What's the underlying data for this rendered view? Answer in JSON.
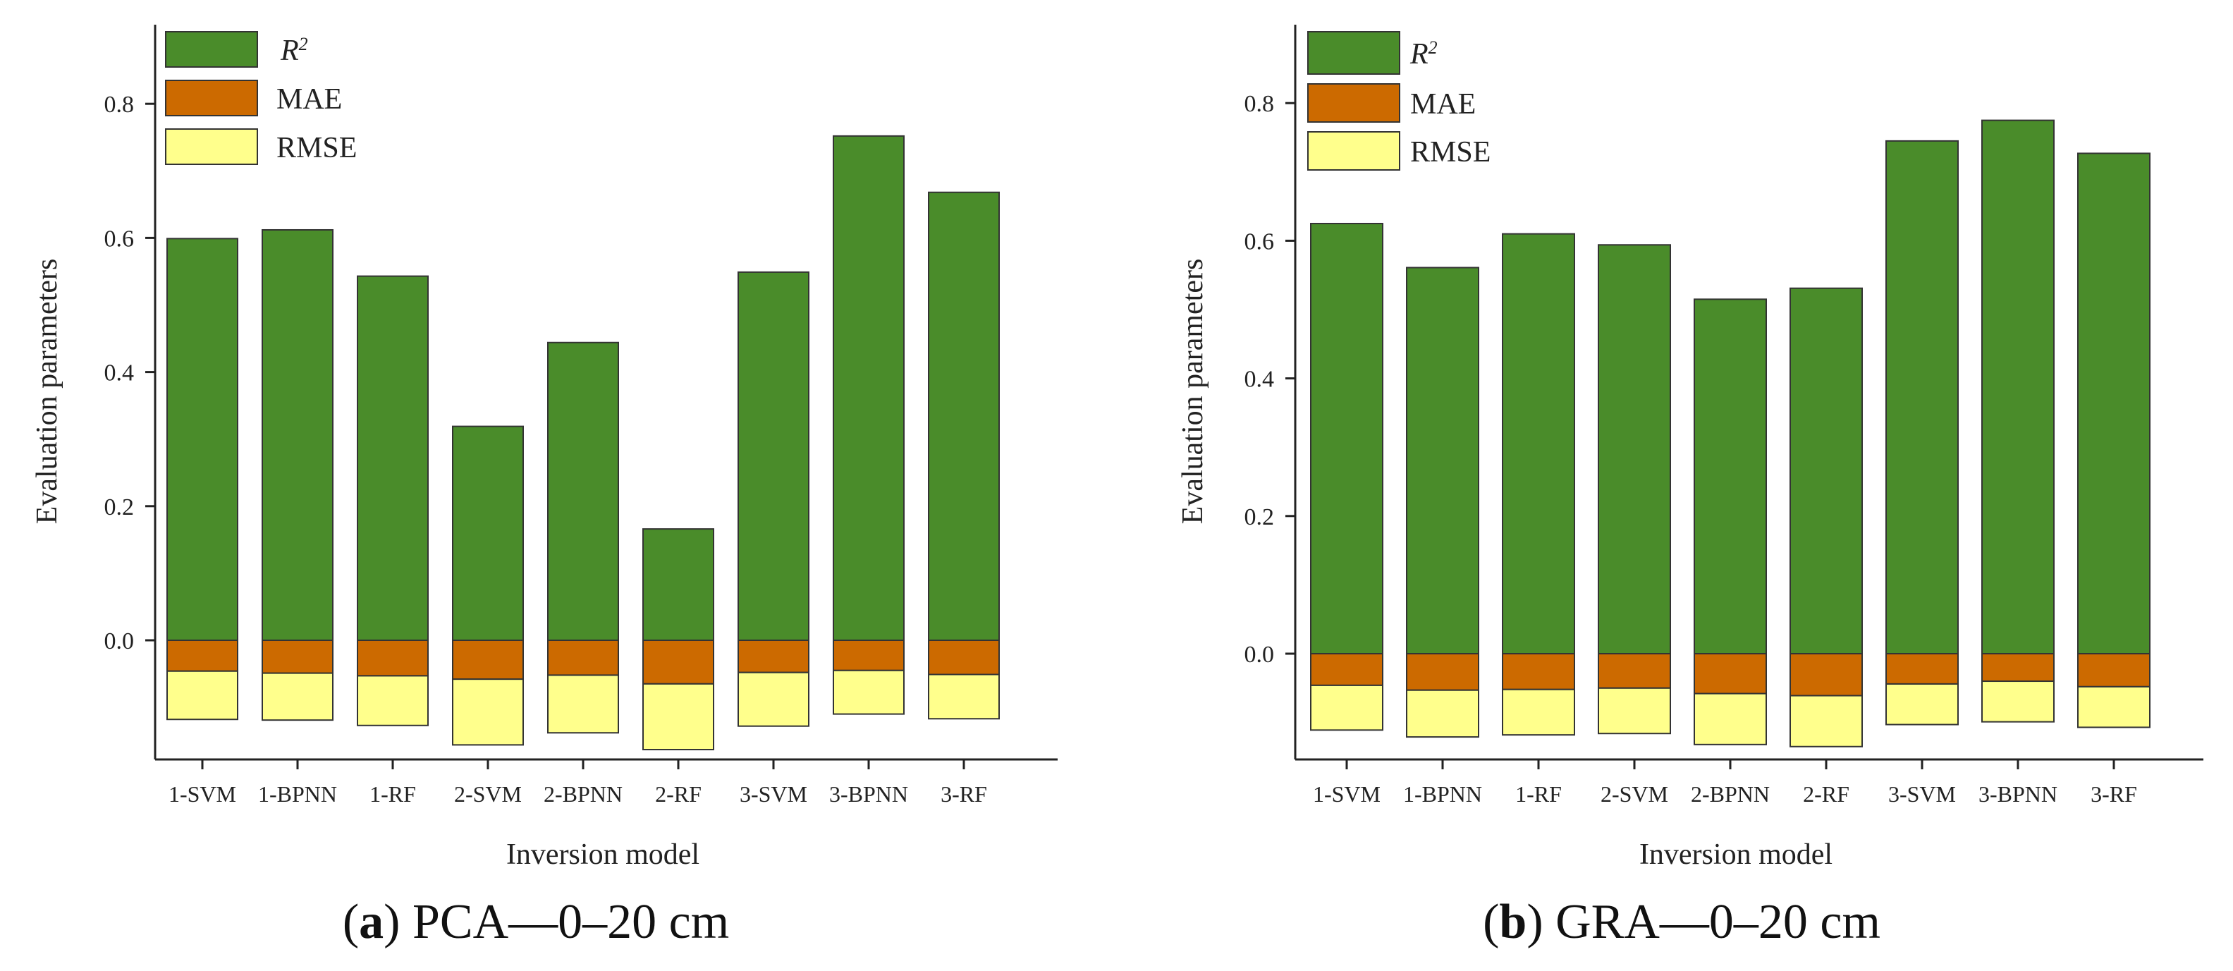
{
  "figure_captions": [
    {
      "label": "a",
      "text": " PCA—0–20 cm"
    },
    {
      "label": "b",
      "text": " GRA—0–20 cm"
    }
  ],
  "colors": {
    "r2": "#4a8c2a",
    "mae": "#cc6a00",
    "rmse": "#ffff8c",
    "stroke": "#333333"
  },
  "chart_data": [
    {
      "type": "bar",
      "stacked": true,
      "title": "",
      "xlabel": "Inversion model",
      "ylabel": "Evaluation  parameters",
      "ylim": [
        -0.18,
        0.9
      ],
      "yticks": [
        0.0,
        0.2,
        0.4,
        0.6,
        0.8
      ],
      "ytick_labels": [
        "0.0",
        "0.2",
        "0.4",
        "0.6",
        "0.8"
      ],
      "legend": [
        {
          "name": "R",
          "sup": "2"
        },
        {
          "name": "MAE",
          "sup": ""
        },
        {
          "name": "RMSE",
          "sup": ""
        }
      ],
      "legend_position": "top-left",
      "categories": [
        "1-SVM",
        "1-BPNN",
        "1-RF",
        "2-SVM",
        "2-BPNN",
        "2-RF",
        "3-SVM",
        "3-BPNN",
        "3-RF"
      ],
      "series": [
        {
          "name": "R2",
          "values": [
            0.599,
            0.612,
            0.543,
            0.319,
            0.444,
            0.166,
            0.549,
            0.752,
            0.668
          ]
        },
        {
          "name": "MAE",
          "values": [
            -0.046,
            -0.049,
            -0.053,
            -0.058,
            -0.052,
            -0.065,
            -0.048,
            -0.045,
            -0.051
          ]
        },
        {
          "name": "RMSE",
          "values": [
            -0.072,
            -0.07,
            -0.074,
            -0.098,
            -0.086,
            -0.098,
            -0.08,
            -0.065,
            -0.066
          ]
        }
      ]
    },
    {
      "type": "bar",
      "stacked": true,
      "title": "",
      "xlabel": "Inversion model",
      "ylabel": "Evaluation  parameters",
      "ylim": [
        -0.16,
        0.9
      ],
      "yticks": [
        0.0,
        0.2,
        0.4,
        0.6,
        0.8
      ],
      "ytick_labels": [
        "0.0",
        "0.2",
        "0.4",
        "0.6",
        "0.8"
      ],
      "legend": [
        {
          "name": "R",
          "sup": "2"
        },
        {
          "name": "MAE",
          "sup": ""
        },
        {
          "name": "RMSE",
          "sup": ""
        }
      ],
      "legend_position": "top-left",
      "categories": [
        "1-SVM",
        "1-BPNN",
        "1-RF",
        "2-SVM",
        "2-BPNN",
        "2-RF",
        "3-SVM",
        "3-BPNN",
        "3-RF"
      ],
      "series": [
        {
          "name": "R2",
          "values": [
            0.625,
            0.561,
            0.61,
            0.594,
            0.515,
            0.531,
            0.745,
            0.775,
            0.727
          ]
        },
        {
          "name": "MAE",
          "values": [
            -0.046,
            -0.053,
            -0.052,
            -0.05,
            -0.058,
            -0.061,
            -0.044,
            -0.04,
            -0.048
          ]
        },
        {
          "name": "RMSE",
          "values": [
            -0.065,
            -0.068,
            -0.066,
            -0.066,
            -0.074,
            -0.074,
            -0.059,
            -0.059,
            -0.059
          ]
        }
      ]
    }
  ]
}
